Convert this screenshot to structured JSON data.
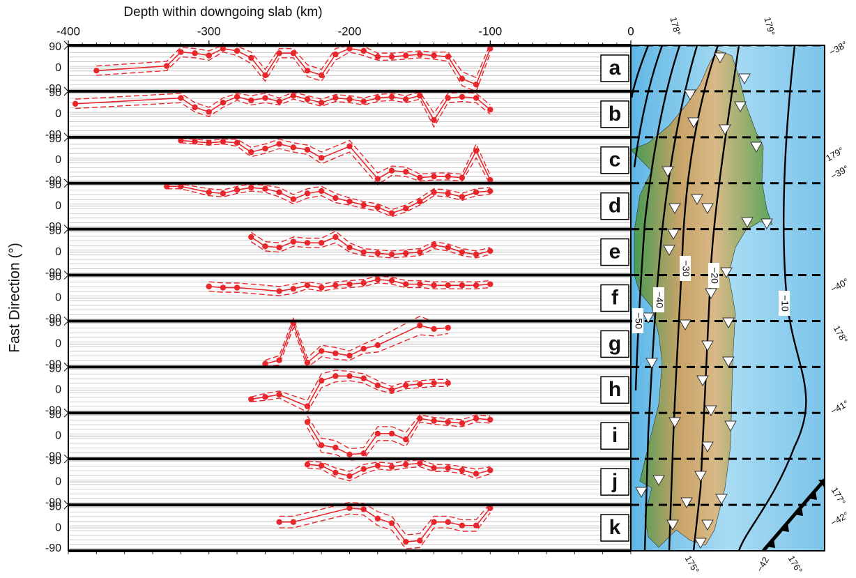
{
  "chart_data": {
    "type": "line",
    "xlabel": "Depth within downgoing slab (km)",
    "ylabel": "Fast Direction (°)",
    "xlim": [
      -400,
      0
    ],
    "xticks": [
      -400,
      -300,
      -200,
      -100,
      0
    ],
    "ylim": [
      -90,
      90
    ],
    "yticks": [
      90,
      0,
      -90
    ],
    "color": "#e8262b",
    "panels": [
      {
        "label": "a",
        "x": [
          -380,
          -330,
          -320,
          -310,
          -300,
          -290,
          -280,
          -270,
          -260,
          -250,
          -240,
          -230,
          -220,
          -210,
          -200,
          -190,
          -180,
          -170,
          -160,
          -150,
          -140,
          -130,
          -120,
          -110,
          -100
        ],
        "values": [
          -10,
          10,
          70,
          65,
          55,
          85,
          75,
          45,
          -30,
          65,
          65,
          -10,
          -30,
          60,
          85,
          75,
          50,
          50,
          55,
          60,
          55,
          50,
          -45,
          -70,
          85
        ],
        "errors": [
          20,
          20,
          20,
          20,
          20,
          15,
          20,
          25,
          25,
          20,
          20,
          25,
          25,
          25,
          15,
          20,
          15,
          15,
          15,
          15,
          15,
          20,
          30,
          30,
          20
        ]
      },
      {
        "label": "b",
        "x": [
          -395,
          -320,
          -310,
          -300,
          -290,
          -280,
          -270,
          -260,
          -250,
          -240,
          -230,
          -220,
          -210,
          -200,
          -190,
          -180,
          -170,
          -160,
          -150,
          -140,
          -130,
          -120,
          -110,
          -100
        ],
        "values": [
          45,
          70,
          30,
          10,
          50,
          75,
          60,
          70,
          55,
          80,
          65,
          50,
          70,
          65,
          55,
          70,
          75,
          65,
          80,
          -25,
          70,
          75,
          70,
          20
        ],
        "errors": [
          20,
          20,
          20,
          20,
          20,
          15,
          20,
          20,
          15,
          15,
          15,
          15,
          15,
          15,
          15,
          15,
          15,
          15,
          15,
          30,
          20,
          20,
          20,
          20
        ]
      },
      {
        "label": "c",
        "x": [
          -320,
          -310,
          -300,
          -290,
          -280,
          -270,
          -260,
          -250,
          -240,
          -230,
          -220,
          -200,
          -180,
          -170,
          -160,
          -150,
          -140,
          -130,
          -120,
          -110,
          -100
        ],
        "values": [
          85,
          80,
          75,
          80,
          75,
          35,
          50,
          70,
          55,
          45,
          10,
          60,
          -80,
          -45,
          -50,
          -75,
          -70,
          -70,
          -75,
          40,
          -85
        ],
        "errors": [
          10,
          10,
          10,
          10,
          15,
          20,
          20,
          20,
          20,
          20,
          25,
          25,
          25,
          20,
          20,
          15,
          15,
          15,
          15,
          30,
          20
        ]
      },
      {
        "label": "d",
        "x": [
          -330,
          -320,
          -300,
          -290,
          -280,
          -270,
          -260,
          -250,
          -240,
          -230,
          -220,
          -210,
          -200,
          -190,
          -180,
          -170,
          -160,
          -150,
          -140,
          -130,
          -120,
          -110,
          -100
        ],
        "values": [
          85,
          85,
          60,
          55,
          70,
          80,
          75,
          60,
          30,
          55,
          65,
          35,
          20,
          5,
          -5,
          -30,
          -10,
          20,
          60,
          55,
          40,
          60,
          65
        ],
        "errors": [
          10,
          10,
          15,
          15,
          15,
          15,
          15,
          20,
          20,
          20,
          20,
          20,
          15,
          15,
          15,
          15,
          15,
          15,
          15,
          15,
          15,
          15,
          15
        ]
      },
      {
        "label": "e",
        "x": [
          -270,
          -260,
          -250,
          -240,
          -230,
          -220,
          -210,
          -200,
          -190,
          -180,
          -170,
          -160,
          -150,
          -140,
          -130,
          -120,
          -110,
          -100
        ],
        "values": [
          65,
          25,
          20,
          45,
          40,
          40,
          65,
          20,
          0,
          -5,
          -10,
          -5,
          0,
          30,
          20,
          0,
          -10,
          5
        ],
        "errors": [
          20,
          20,
          20,
          20,
          20,
          20,
          25,
          20,
          15,
          15,
          15,
          15,
          15,
          15,
          15,
          15,
          15,
          15
        ]
      },
      {
        "label": "f",
        "x": [
          -300,
          -290,
          -280,
          -250,
          -240,
          -230,
          -220,
          -210,
          -200,
          -190,
          -180,
          -170,
          -160,
          -150,
          -140,
          -130,
          -120,
          -110,
          -100
        ],
        "values": [
          50,
          45,
          45,
          30,
          40,
          55,
          45,
          55,
          60,
          65,
          80,
          75,
          60,
          60,
          55,
          55,
          55,
          55,
          60
        ],
        "errors": [
          20,
          20,
          20,
          20,
          20,
          15,
          15,
          15,
          15,
          15,
          15,
          15,
          15,
          15,
          15,
          15,
          15,
          15,
          15
        ]
      },
      {
        "label": "g",
        "x": [
          -260,
          -250,
          -240,
          -230,
          -220,
          -210,
          -200,
          -190,
          -180,
          -150,
          -140,
          -130
        ],
        "values": [
          -85,
          -70,
          90,
          -80,
          -30,
          -40,
          -50,
          -20,
          -5,
          80,
          65,
          70
        ],
        "errors": [
          15,
          20,
          20,
          20,
          25,
          25,
          20,
          20,
          30,
          40,
          30,
          25
        ]
      },
      {
        "label": "h",
        "x": [
          -270,
          -260,
          -250,
          -230,
          -220,
          -210,
          -200,
          -190,
          -180,
          -170,
          -160,
          -150,
          -140,
          -130
        ],
        "values": [
          -40,
          -30,
          -20,
          -70,
          40,
          60,
          60,
          50,
          20,
          0,
          20,
          25,
          30,
          30
        ],
        "errors": [
          10,
          15,
          15,
          25,
          30,
          25,
          20,
          20,
          20,
          15,
          15,
          15,
          15,
          15
        ]
      },
      {
        "label": "i",
        "x": [
          -230,
          -220,
          -210,
          -200,
          -190,
          -180,
          -170,
          -160,
          -150,
          -140,
          -130,
          -120,
          -110,
          -100
        ],
        "values": [
          60,
          -40,
          -50,
          -80,
          -75,
          10,
          10,
          -15,
          75,
          65,
          60,
          55,
          75,
          70
        ],
        "errors": [
          25,
          30,
          30,
          25,
          25,
          30,
          30,
          30,
          15,
          15,
          15,
          15,
          15,
          15
        ]
      },
      {
        "label": "j",
        "x": [
          -230,
          -220,
          -210,
          -200,
          -190,
          -180,
          -170,
          -160,
          -150,
          -140,
          -130,
          -120,
          -110,
          -100
        ],
        "values": [
          75,
          70,
          40,
          25,
          55,
          70,
          65,
          75,
          80,
          60,
          60,
          50,
          35,
          50
        ],
        "errors": [
          15,
          15,
          20,
          20,
          20,
          15,
          15,
          15,
          15,
          15,
          15,
          15,
          20,
          15
        ]
      },
      {
        "label": "k",
        "x": [
          -250,
          -240,
          -200,
          -190,
          -180,
          -170,
          -160,
          -150,
          -140,
          -130,
          -120,
          -110,
          -100
        ],
        "values": [
          25,
          25,
          85,
          80,
          40,
          20,
          -60,
          -55,
          25,
          25,
          10,
          10,
          85
        ],
        "errors": [
          25,
          25,
          25,
          25,
          30,
          30,
          30,
          30,
          25,
          25,
          25,
          25,
          20
        ]
      }
    ]
  },
  "map": {
    "contour_labels": [
      "−10",
      "−20",
      "−30",
      "−40",
      "−50"
    ],
    "grid_labels": [
      "178°",
      "179°",
      "−38°",
      "179°",
      "−39°",
      "−40°",
      "178°",
      "−41°",
      "177°",
      "−42°",
      "175°",
      "−42",
      "176°"
    ]
  }
}
